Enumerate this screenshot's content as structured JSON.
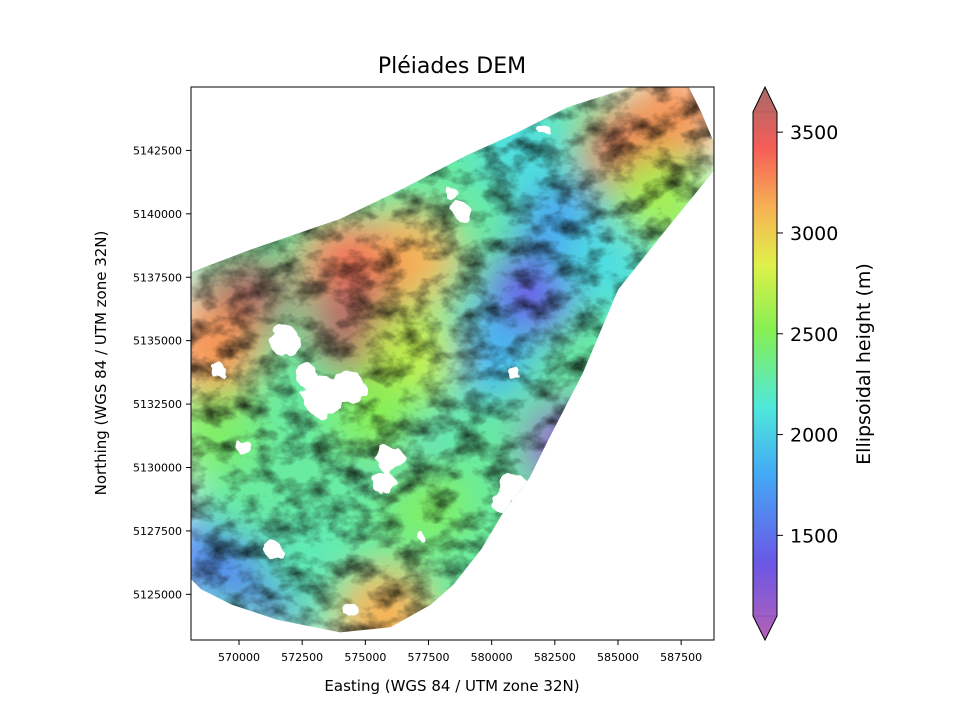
{
  "chart_data": {
    "type": "heatmap",
    "title": "Pléiades DEM",
    "xlabel": "Easting (WGS 84 / UTM zone 32N)",
    "ylabel": "Northing (WGS 84 / UTM zone 32N)",
    "xlim": [
      568100,
      588800
    ],
    "ylim": [
      5123200,
      5145000
    ],
    "xticks": [
      570000,
      572500,
      575000,
      577500,
      580000,
      582500,
      585000,
      587500
    ],
    "xtick_labels": [
      "570000",
      "572500",
      "575000",
      "577500",
      "580000",
      "582500",
      "585000",
      "587500"
    ],
    "yticks": [
      5125000,
      5127500,
      5130000,
      5132500,
      5135000,
      5137500,
      5140000,
      5142500
    ],
    "ytick_labels": [
      "5125000",
      "5127500",
      "5130000",
      "5132500",
      "5135000",
      "5137500",
      "5140000",
      "5142500"
    ],
    "colorbar": {
      "label": "Ellipsoidal height (m)",
      "range": [
        1100,
        3600
      ],
      "extend": "both",
      "colormap": "rainbow (alpha-shaded over hillshade)",
      "ticks": [
        1500,
        2000,
        2500,
        3000,
        3500
      ],
      "tick_labels": [
        "1500",
        "2000",
        "2500",
        "3000",
        "3500"
      ]
    },
    "data_footprint": [
      [
        568100,
        5137700
      ],
      [
        570500,
        5138600
      ],
      [
        574000,
        5139800
      ],
      [
        576500,
        5141000
      ],
      [
        579000,
        5142300
      ],
      [
        581000,
        5143200
      ],
      [
        583000,
        5144200
      ],
      [
        585500,
        5145000
      ],
      [
        587800,
        5145000
      ],
      [
        588300,
        5144000
      ],
      [
        588800,
        5142800
      ],
      [
        588800,
        5141700
      ],
      [
        587000,
        5139500
      ],
      [
        585000,
        5137000
      ],
      [
        583600,
        5133700
      ],
      [
        582200,
        5131000
      ],
      [
        581500,
        5129600
      ],
      [
        580500,
        5128300
      ],
      [
        579600,
        5126800
      ],
      [
        578500,
        5125400
      ],
      [
        577600,
        5124600
      ],
      [
        576000,
        5123700
      ],
      [
        574000,
        5123500
      ],
      [
        571500,
        5124000
      ],
      [
        569700,
        5124600
      ],
      [
        568500,
        5125200
      ],
      [
        568100,
        5125600
      ]
    ],
    "elevation_regions": [
      {
        "center": [
          583000,
          5130800
        ],
        "height_m": 1250
      },
      {
        "center": [
          581500,
          5136800
        ],
        "height_m": 1450
      },
      {
        "center": [
          582800,
          5139500
        ],
        "height_m": 1800
      },
      {
        "center": [
          581200,
          5142500
        ],
        "height_m": 2100
      },
      {
        "center": [
          579800,
          5134500
        ],
        "height_m": 1900
      },
      {
        "center": [
          576200,
          5131200
        ],
        "height_m": 2050
      },
      {
        "center": [
          571500,
          5125600
        ],
        "height_m": 1550
      },
      {
        "center": [
          568900,
          5126500
        ],
        "height_m": 1700
      },
      {
        "center": [
          570200,
          5129000
        ],
        "height_m": 2300
      },
      {
        "center": [
          569000,
          5131500
        ],
        "height_m": 2450
      },
      {
        "center": [
          577500,
          5128500
        ],
        "height_m": 2450
      },
      {
        "center": [
          575800,
          5124200
        ],
        "height_m": 3050
      },
      {
        "center": [
          572600,
          5126400
        ],
        "height_m": 2250
      },
      {
        "center": [
          576800,
          5138300
        ],
        "height_m": 3050
      },
      {
        "center": [
          574300,
          5138000
        ],
        "height_m": 3250
      },
      {
        "center": [
          574500,
          5135500
        ],
        "height_m": 3550
      },
      {
        "center": [
          570300,
          5136800
        ],
        "height_m": 3650
      },
      {
        "center": [
          569000,
          5134700
        ],
        "height_m": 3150
      },
      {
        "center": [
          577000,
          5134500
        ],
        "height_m": 2700
      },
      {
        "center": [
          585500,
          5142500
        ],
        "height_m": 3350
      },
      {
        "center": [
          587200,
          5143800
        ],
        "height_m": 3150
      },
      {
        "center": [
          586500,
          5140500
        ],
        "height_m": 2600
      },
      {
        "center": [
          584500,
          5138000
        ],
        "height_m": 2100
      },
      {
        "center": [
          575500,
          5132000
        ],
        "height_m": 2500
      }
    ],
    "nodata_holes": [
      {
        "center": [
          571800,
          5135000
        ],
        "radius": 600
      },
      {
        "center": [
          573300,
          5132800
        ],
        "radius": 800
      },
      {
        "center": [
          574300,
          5133200
        ],
        "radius": 650
      },
      {
        "center": [
          572700,
          5133600
        ],
        "radius": 450
      },
      {
        "center": [
          569200,
          5133800
        ],
        "radius": 300
      },
      {
        "center": [
          570200,
          5130800
        ],
        "radius": 300
      },
      {
        "center": [
          576000,
          5130300
        ],
        "radius": 550
      },
      {
        "center": [
          575700,
          5129400
        ],
        "radius": 450
      },
      {
        "center": [
          580900,
          5129200
        ],
        "radius": 550
      },
      {
        "center": [
          580400,
          5128600
        ],
        "radius": 400
      },
      {
        "center": [
          571300,
          5126800
        ],
        "radius": 350
      },
      {
        "center": [
          578800,
          5140100
        ],
        "radius": 350
      },
      {
        "center": [
          578400,
          5140800
        ],
        "radius": 250
      },
      {
        "center": [
          579400,
          5142800
        ],
        "radius": 300
      },
      {
        "center": [
          574400,
          5124400
        ],
        "radius": 280
      },
      {
        "center": [
          582100,
          5143300
        ],
        "radius": 220
      },
      {
        "center": [
          580900,
          5133700
        ],
        "radius": 250
      },
      {
        "center": [
          577200,
          5127300
        ],
        "radius": 150
      }
    ]
  }
}
